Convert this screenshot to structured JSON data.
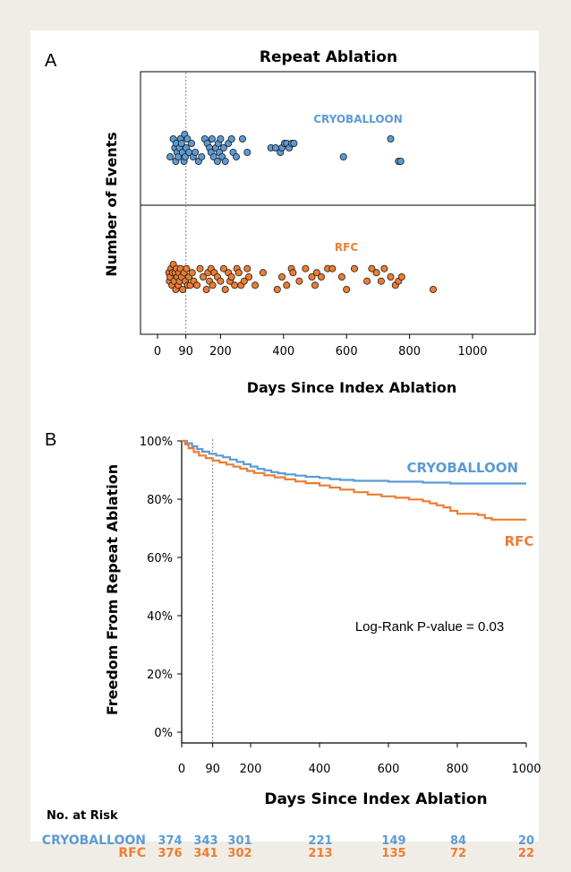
{
  "colors": {
    "cryo": "#5b9bd5",
    "rfc": "#ed7d31",
    "axis": "#000000",
    "guide": "#888888"
  },
  "chart_data": [
    {
      "panel_label": "A",
      "type": "scatter",
      "title": "Repeat Ablation",
      "xlabel": "Days Since Index Ablation",
      "ylabel": "Number of Events",
      "xlim": [
        -20,
        1050
      ],
      "xticks": [
        "0",
        "90",
        "200",
        "400",
        "600",
        "800",
        "1000"
      ],
      "xtick_values": [
        0,
        90,
        200,
        400,
        600,
        800,
        1000
      ],
      "reference_line_x": 90,
      "grid": false,
      "series": [
        {
          "name": "CRYOBALLOON",
          "color": "#5b9bd5",
          "x": [
            40,
            50,
            55,
            58,
            60,
            62,
            66,
            70,
            73,
            76,
            79,
            84,
            86,
            88,
            91,
            95,
            100,
            108,
            113,
            120,
            130,
            140,
            150,
            158,
            165,
            170,
            173,
            178,
            185,
            190,
            193,
            196,
            200,
            205,
            210,
            215,
            225,
            235,
            240,
            250,
            270,
            285,
            360,
            375,
            390,
            395,
            403,
            410,
            418,
            426,
            433,
            740,
            590,
            765,
            772
          ],
          "y": [
            2,
            6,
            4,
            1,
            5,
            3,
            2,
            4,
            6,
            5,
            3,
            1,
            7,
            2,
            4,
            6,
            3,
            5,
            2,
            3,
            1,
            2,
            6,
            5,
            4,
            3,
            6,
            2,
            4,
            1,
            5,
            3,
            6,
            2,
            4,
            1,
            5,
            6,
            3,
            2,
            6,
            3,
            4,
            4,
            3,
            4,
            5,
            5,
            4,
            5,
            5,
            6,
            2,
            1,
            1
          ]
        },
        {
          "name": "RFC",
          "color": "#ed7d31",
          "x": [
            36,
            38,
            40,
            43,
            46,
            48,
            50,
            53,
            56,
            58,
            60,
            63,
            66,
            68,
            70,
            73,
            76,
            80,
            84,
            88,
            92,
            96,
            100,
            104,
            110,
            115,
            125,
            135,
            145,
            155,
            160,
            165,
            170,
            175,
            180,
            190,
            200,
            210,
            215,
            225,
            230,
            235,
            245,
            252,
            258,
            265,
            275,
            285,
            290,
            310,
            335,
            380,
            395,
            410,
            425,
            430,
            450,
            470,
            490,
            500,
            505,
            520,
            540,
            555,
            585,
            600,
            625,
            665,
            680,
            695,
            710,
            720,
            740,
            755,
            765,
            775,
            875
          ],
          "y": [
            5,
            3,
            4,
            6,
            2,
            5,
            7,
            3,
            5,
            1,
            6,
            4,
            2,
            5,
            3,
            6,
            4,
            1,
            5,
            3,
            6,
            2,
            4,
            2,
            5,
            3,
            2,
            6,
            4,
            1,
            5,
            3,
            6,
            2,
            5,
            4,
            3,
            6,
            1,
            5,
            3,
            4,
            2,
            6,
            5,
            2,
            3,
            6,
            4,
            2,
            5,
            1,
            4,
            2,
            6,
            5,
            3,
            6,
            4,
            2,
            5,
            4,
            6,
            6,
            4,
            1,
            6,
            3,
            6,
            5,
            3,
            6,
            4,
            2,
            3,
            4,
            1
          ]
        }
      ]
    },
    {
      "panel_label": "B",
      "type": "line",
      "xlabel": "Days Since Index Ablation",
      "ylabel": "Freedom From Repeat Ablation",
      "xlim": [
        0,
        1000
      ],
      "ylim": [
        0,
        100
      ],
      "xticks": [
        "0",
        "90",
        "200",
        "400",
        "600",
        "800",
        "1000"
      ],
      "xtick_values": [
        0,
        90,
        200,
        400,
        600,
        800,
        1000
      ],
      "yticks": [
        "0%",
        "20%",
        "40%",
        "60%",
        "80%",
        "100%"
      ],
      "ytick_values": [
        0,
        20,
        40,
        60,
        80,
        100
      ],
      "reference_line_x": 90,
      "grid": false,
      "annotation": "Log-Rank P-value = 0.03",
      "series": [
        {
          "name": "CRYOBALLOON",
          "color": "#5b9bd5",
          "x": [
            0,
            15,
            30,
            45,
            60,
            80,
            100,
            120,
            140,
            160,
            180,
            200,
            220,
            240,
            260,
            280,
            300,
            330,
            360,
            400,
            430,
            460,
            500,
            550,
            600,
            650,
            700,
            750,
            780,
            800,
            850,
            900,
            950,
            1000
          ],
          "y": [
            100,
            99.2,
            98.2,
            97.2,
            96.3,
            95.6,
            95.0,
            94.4,
            93.6,
            92.8,
            92.0,
            91.2,
            90.4,
            89.9,
            89.3,
            88.9,
            88.5,
            88.1,
            87.7,
            87.3,
            86.9,
            86.6,
            86.3,
            86.3,
            86.0,
            86.0,
            85.7,
            85.7,
            85.4,
            85.4,
            85.4,
            85.4,
            85.4,
            85.4
          ]
        },
        {
          "name": "RFC",
          "color": "#ed7d31",
          "x": [
            0,
            10,
            20,
            35,
            50,
            70,
            90,
            110,
            130,
            150,
            170,
            190,
            210,
            240,
            270,
            300,
            330,
            360,
            400,
            430,
            460,
            500,
            540,
            580,
            620,
            660,
            700,
            720,
            740,
            760,
            780,
            800,
            830,
            860,
            880,
            900,
            950,
            1000
          ],
          "y": [
            100,
            98.8,
            97.5,
            96.2,
            95.0,
            94.1,
            93.3,
            92.6,
            91.9,
            91.2,
            90.5,
            89.7,
            89.0,
            88.2,
            87.5,
            86.8,
            86.1,
            85.5,
            84.7,
            84.0,
            83.3,
            82.4,
            81.6,
            81.0,
            80.5,
            79.9,
            79.3,
            78.6,
            77.9,
            77.2,
            76.0,
            75.0,
            75.0,
            74.6,
            73.5,
            73.0,
            73.0,
            73.0
          ]
        }
      ]
    }
  ],
  "risk_table": {
    "title": "No. at Risk",
    "rows": [
      {
        "name": "CRYOBALLOON",
        "values": [
          "374",
          "343",
          "301",
          "221",
          "149",
          "84",
          "20"
        ]
      },
      {
        "name": "RFC",
        "values": [
          "376",
          "341",
          "302",
          "213",
          "135",
          "72",
          "22"
        ]
      }
    ]
  }
}
